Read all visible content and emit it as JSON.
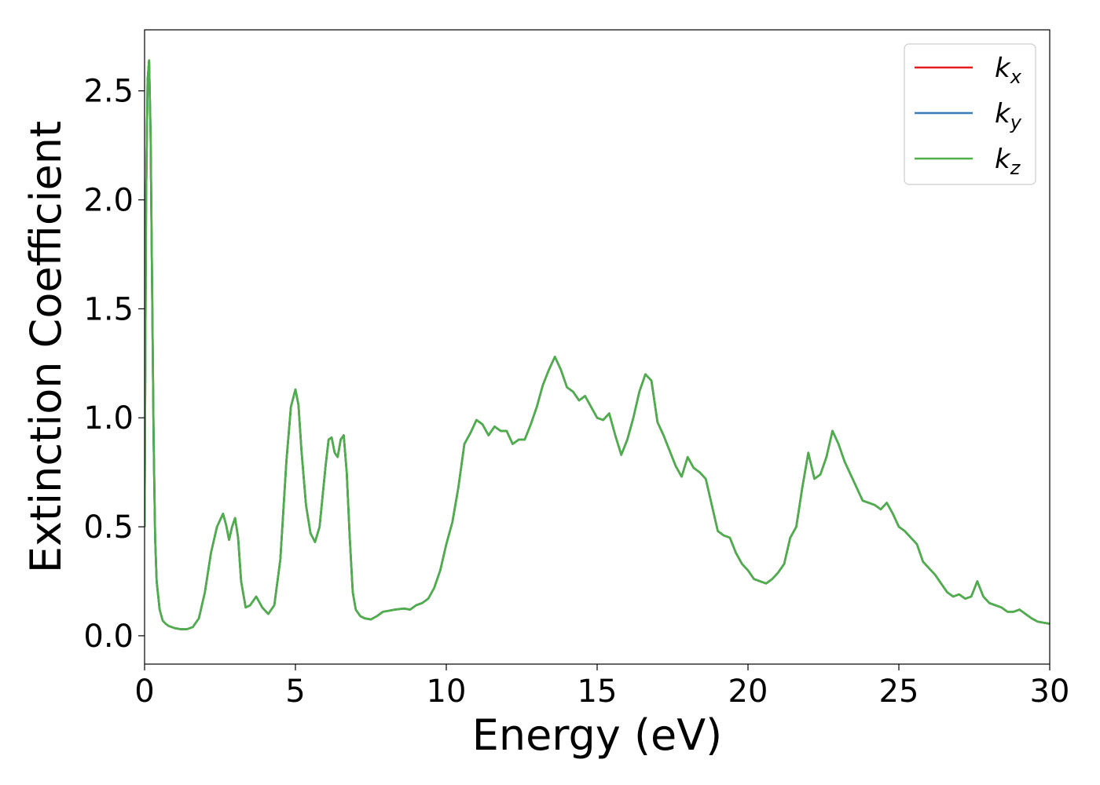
{
  "chart_data": {
    "type": "line",
    "xlabel": "Energy (eV)",
    "ylabel": "Extinction Coefficient",
    "xlim": [
      0,
      30
    ],
    "ylim": [
      -0.13,
      2.78
    ],
    "xticks": [
      0,
      5,
      10,
      15,
      20,
      25,
      30
    ],
    "xtick_labels": [
      "0",
      "5",
      "10",
      "15",
      "20",
      "25",
      "30"
    ],
    "yticks": [
      0.0,
      0.5,
      1.0,
      1.5,
      2.0,
      2.5
    ],
    "ytick_labels": [
      "0.0",
      "0.5",
      "1.0",
      "1.5",
      "2.0",
      "2.5"
    ],
    "grid": false,
    "legend_position": "top-right",
    "colors": {
      "kx": "#e41a1c",
      "ky": "#377eb8",
      "kz": "#4daf4a"
    },
    "x": [
      0,
      0.05,
      0.1,
      0.15,
      0.2,
      0.25,
      0.3,
      0.35,
      0.4,
      0.5,
      0.6,
      0.7,
      0.8,
      1.0,
      1.2,
      1.4,
      1.6,
      1.8,
      2.0,
      2.2,
      2.4,
      2.6,
      2.7,
      2.8,
      2.9,
      3.0,
      3.1,
      3.2,
      3.35,
      3.5,
      3.7,
      3.9,
      4.1,
      4.3,
      4.5,
      4.7,
      4.85,
      5.0,
      5.1,
      5.2,
      5.35,
      5.5,
      5.65,
      5.8,
      6.0,
      6.1,
      6.2,
      6.3,
      6.4,
      6.5,
      6.6,
      6.7,
      6.8,
      6.9,
      7.0,
      7.15,
      7.3,
      7.5,
      7.7,
      7.9,
      8.1,
      8.3,
      8.6,
      8.8,
      9.0,
      9.2,
      9.4,
      9.6,
      9.8,
      10.0,
      10.2,
      10.4,
      10.6,
      10.8,
      11.0,
      11.2,
      11.4,
      11.6,
      11.8,
      12.0,
      12.2,
      12.4,
      12.6,
      12.8,
      13.0,
      13.2,
      13.4,
      13.6,
      13.8,
      14.0,
      14.2,
      14.4,
      14.6,
      14.8,
      15.0,
      15.2,
      15.4,
      15.6,
      15.8,
      16.0,
      16.2,
      16.4,
      16.6,
      16.8,
      17.0,
      17.2,
      17.4,
      17.6,
      17.8,
      18.0,
      18.2,
      18.4,
      18.6,
      18.8,
      19.0,
      19.2,
      19.4,
      19.6,
      19.8,
      20.0,
      20.2,
      20.4,
      20.6,
      20.8,
      21.0,
      21.2,
      21.4,
      21.6,
      21.8,
      22.0,
      22.2,
      22.4,
      22.6,
      22.8,
      23.0,
      23.2,
      23.4,
      23.6,
      23.8,
      24.0,
      24.2,
      24.4,
      24.6,
      24.8,
      25.0,
      25.2,
      25.4,
      25.6,
      25.8,
      26.0,
      26.2,
      26.4,
      26.6,
      26.8,
      27.0,
      27.2,
      27.4,
      27.6,
      27.8,
      28.0,
      28.2,
      28.4,
      28.6,
      28.8,
      29.0,
      29.2,
      29.4,
      29.6,
      29.8,
      30.0
    ],
    "series": [
      {
        "name": "kx",
        "y": [
          0.5,
          2.0,
          2.55,
          2.64,
          2.3,
          1.6,
          0.9,
          0.45,
          0.25,
          0.12,
          0.07,
          0.055,
          0.045,
          0.035,
          0.03,
          0.03,
          0.04,
          0.08,
          0.2,
          0.38,
          0.5,
          0.56,
          0.51,
          0.44,
          0.5,
          0.54,
          0.45,
          0.25,
          0.13,
          0.14,
          0.18,
          0.13,
          0.1,
          0.14,
          0.35,
          0.8,
          1.05,
          1.13,
          1.06,
          0.85,
          0.6,
          0.47,
          0.43,
          0.5,
          0.78,
          0.9,
          0.91,
          0.84,
          0.82,
          0.9,
          0.92,
          0.75,
          0.45,
          0.2,
          0.12,
          0.09,
          0.08,
          0.075,
          0.09,
          0.11,
          0.115,
          0.12,
          0.125,
          0.12,
          0.14,
          0.15,
          0.17,
          0.22,
          0.3,
          0.42,
          0.52,
          0.68,
          0.88,
          0.93,
          0.99,
          0.97,
          0.92,
          0.96,
          0.94,
          0.94,
          0.88,
          0.9,
          0.9,
          0.97,
          1.05,
          1.15,
          1.22,
          1.28,
          1.22,
          1.14,
          1.12,
          1.08,
          1.1,
          1.05,
          1.0,
          0.99,
          1.02,
          0.92,
          0.83,
          0.9,
          1.0,
          1.12,
          1.2,
          1.17,
          0.98,
          0.92,
          0.85,
          0.78,
          0.73,
          0.82,
          0.77,
          0.75,
          0.72,
          0.6,
          0.48,
          0.46,
          0.45,
          0.38,
          0.33,
          0.3,
          0.26,
          0.25,
          0.24,
          0.26,
          0.29,
          0.33,
          0.45,
          0.5,
          0.68,
          0.84,
          0.72,
          0.74,
          0.82,
          0.94,
          0.88,
          0.8,
          0.74,
          0.68,
          0.62,
          0.61,
          0.6,
          0.58,
          0.61,
          0.56,
          0.5,
          0.48,
          0.45,
          0.42,
          0.34,
          0.31,
          0.28,
          0.24,
          0.2,
          0.18,
          0.19,
          0.17,
          0.18,
          0.25,
          0.18,
          0.15,
          0.14,
          0.13,
          0.11,
          0.11,
          0.12,
          0.1,
          0.08,
          0.065,
          0.06,
          0.055
        ]
      },
      {
        "name": "ky",
        "y": [
          0.5,
          2.0,
          2.55,
          2.64,
          2.3,
          1.6,
          0.9,
          0.45,
          0.25,
          0.12,
          0.07,
          0.055,
          0.045,
          0.035,
          0.03,
          0.03,
          0.04,
          0.08,
          0.2,
          0.38,
          0.5,
          0.56,
          0.51,
          0.44,
          0.5,
          0.54,
          0.45,
          0.25,
          0.13,
          0.14,
          0.18,
          0.13,
          0.1,
          0.14,
          0.35,
          0.8,
          1.05,
          1.13,
          1.06,
          0.85,
          0.6,
          0.47,
          0.43,
          0.5,
          0.78,
          0.9,
          0.91,
          0.84,
          0.82,
          0.9,
          0.92,
          0.75,
          0.45,
          0.2,
          0.12,
          0.09,
          0.08,
          0.075,
          0.09,
          0.11,
          0.115,
          0.12,
          0.125,
          0.12,
          0.14,
          0.15,
          0.17,
          0.22,
          0.3,
          0.42,
          0.52,
          0.68,
          0.88,
          0.93,
          0.99,
          0.97,
          0.92,
          0.96,
          0.94,
          0.94,
          0.88,
          0.9,
          0.9,
          0.97,
          1.05,
          1.15,
          1.22,
          1.28,
          1.22,
          1.14,
          1.12,
          1.08,
          1.1,
          1.05,
          1.0,
          0.99,
          1.02,
          0.92,
          0.83,
          0.9,
          1.0,
          1.12,
          1.2,
          1.17,
          0.98,
          0.92,
          0.85,
          0.78,
          0.73,
          0.82,
          0.77,
          0.75,
          0.72,
          0.6,
          0.48,
          0.46,
          0.45,
          0.38,
          0.33,
          0.3,
          0.26,
          0.25,
          0.24,
          0.26,
          0.29,
          0.33,
          0.45,
          0.5,
          0.68,
          0.84,
          0.72,
          0.74,
          0.82,
          0.94,
          0.88,
          0.8,
          0.74,
          0.68,
          0.62,
          0.61,
          0.6,
          0.58,
          0.61,
          0.56,
          0.5,
          0.48,
          0.45,
          0.42,
          0.34,
          0.31,
          0.28,
          0.24,
          0.2,
          0.18,
          0.19,
          0.17,
          0.18,
          0.25,
          0.18,
          0.15,
          0.14,
          0.13,
          0.11,
          0.11,
          0.12,
          0.1,
          0.08,
          0.065,
          0.06,
          0.055
        ]
      },
      {
        "name": "kz",
        "y": [
          0.5,
          2.0,
          2.55,
          2.64,
          2.3,
          1.6,
          0.9,
          0.45,
          0.25,
          0.12,
          0.07,
          0.055,
          0.045,
          0.035,
          0.03,
          0.03,
          0.04,
          0.08,
          0.2,
          0.38,
          0.5,
          0.56,
          0.51,
          0.44,
          0.5,
          0.54,
          0.45,
          0.25,
          0.13,
          0.14,
          0.18,
          0.13,
          0.1,
          0.14,
          0.35,
          0.8,
          1.05,
          1.13,
          1.06,
          0.85,
          0.6,
          0.47,
          0.43,
          0.5,
          0.78,
          0.9,
          0.91,
          0.84,
          0.82,
          0.9,
          0.92,
          0.75,
          0.45,
          0.2,
          0.12,
          0.09,
          0.08,
          0.075,
          0.09,
          0.11,
          0.115,
          0.12,
          0.125,
          0.12,
          0.14,
          0.15,
          0.17,
          0.22,
          0.3,
          0.42,
          0.52,
          0.68,
          0.88,
          0.93,
          0.99,
          0.97,
          0.92,
          0.96,
          0.94,
          0.94,
          0.88,
          0.9,
          0.9,
          0.97,
          1.05,
          1.15,
          1.22,
          1.28,
          1.22,
          1.14,
          1.12,
          1.08,
          1.1,
          1.05,
          1.0,
          0.99,
          1.02,
          0.92,
          0.83,
          0.9,
          1.0,
          1.12,
          1.2,
          1.17,
          0.98,
          0.92,
          0.85,
          0.78,
          0.73,
          0.82,
          0.77,
          0.75,
          0.72,
          0.6,
          0.48,
          0.46,
          0.45,
          0.38,
          0.33,
          0.3,
          0.26,
          0.25,
          0.24,
          0.26,
          0.29,
          0.33,
          0.45,
          0.5,
          0.68,
          0.84,
          0.72,
          0.74,
          0.82,
          0.94,
          0.88,
          0.8,
          0.74,
          0.68,
          0.62,
          0.61,
          0.6,
          0.58,
          0.61,
          0.56,
          0.5,
          0.48,
          0.45,
          0.42,
          0.34,
          0.31,
          0.28,
          0.24,
          0.2,
          0.18,
          0.19,
          0.17,
          0.18,
          0.25,
          0.18,
          0.15,
          0.14,
          0.13,
          0.11,
          0.11,
          0.12,
          0.1,
          0.08,
          0.065,
          0.06,
          0.055
        ]
      }
    ],
    "legend": [
      {
        "key": "kx",
        "base": "k",
        "sub": "x"
      },
      {
        "key": "ky",
        "base": "k",
        "sub": "y"
      },
      {
        "key": "kz",
        "base": "k",
        "sub": "z"
      }
    ]
  }
}
